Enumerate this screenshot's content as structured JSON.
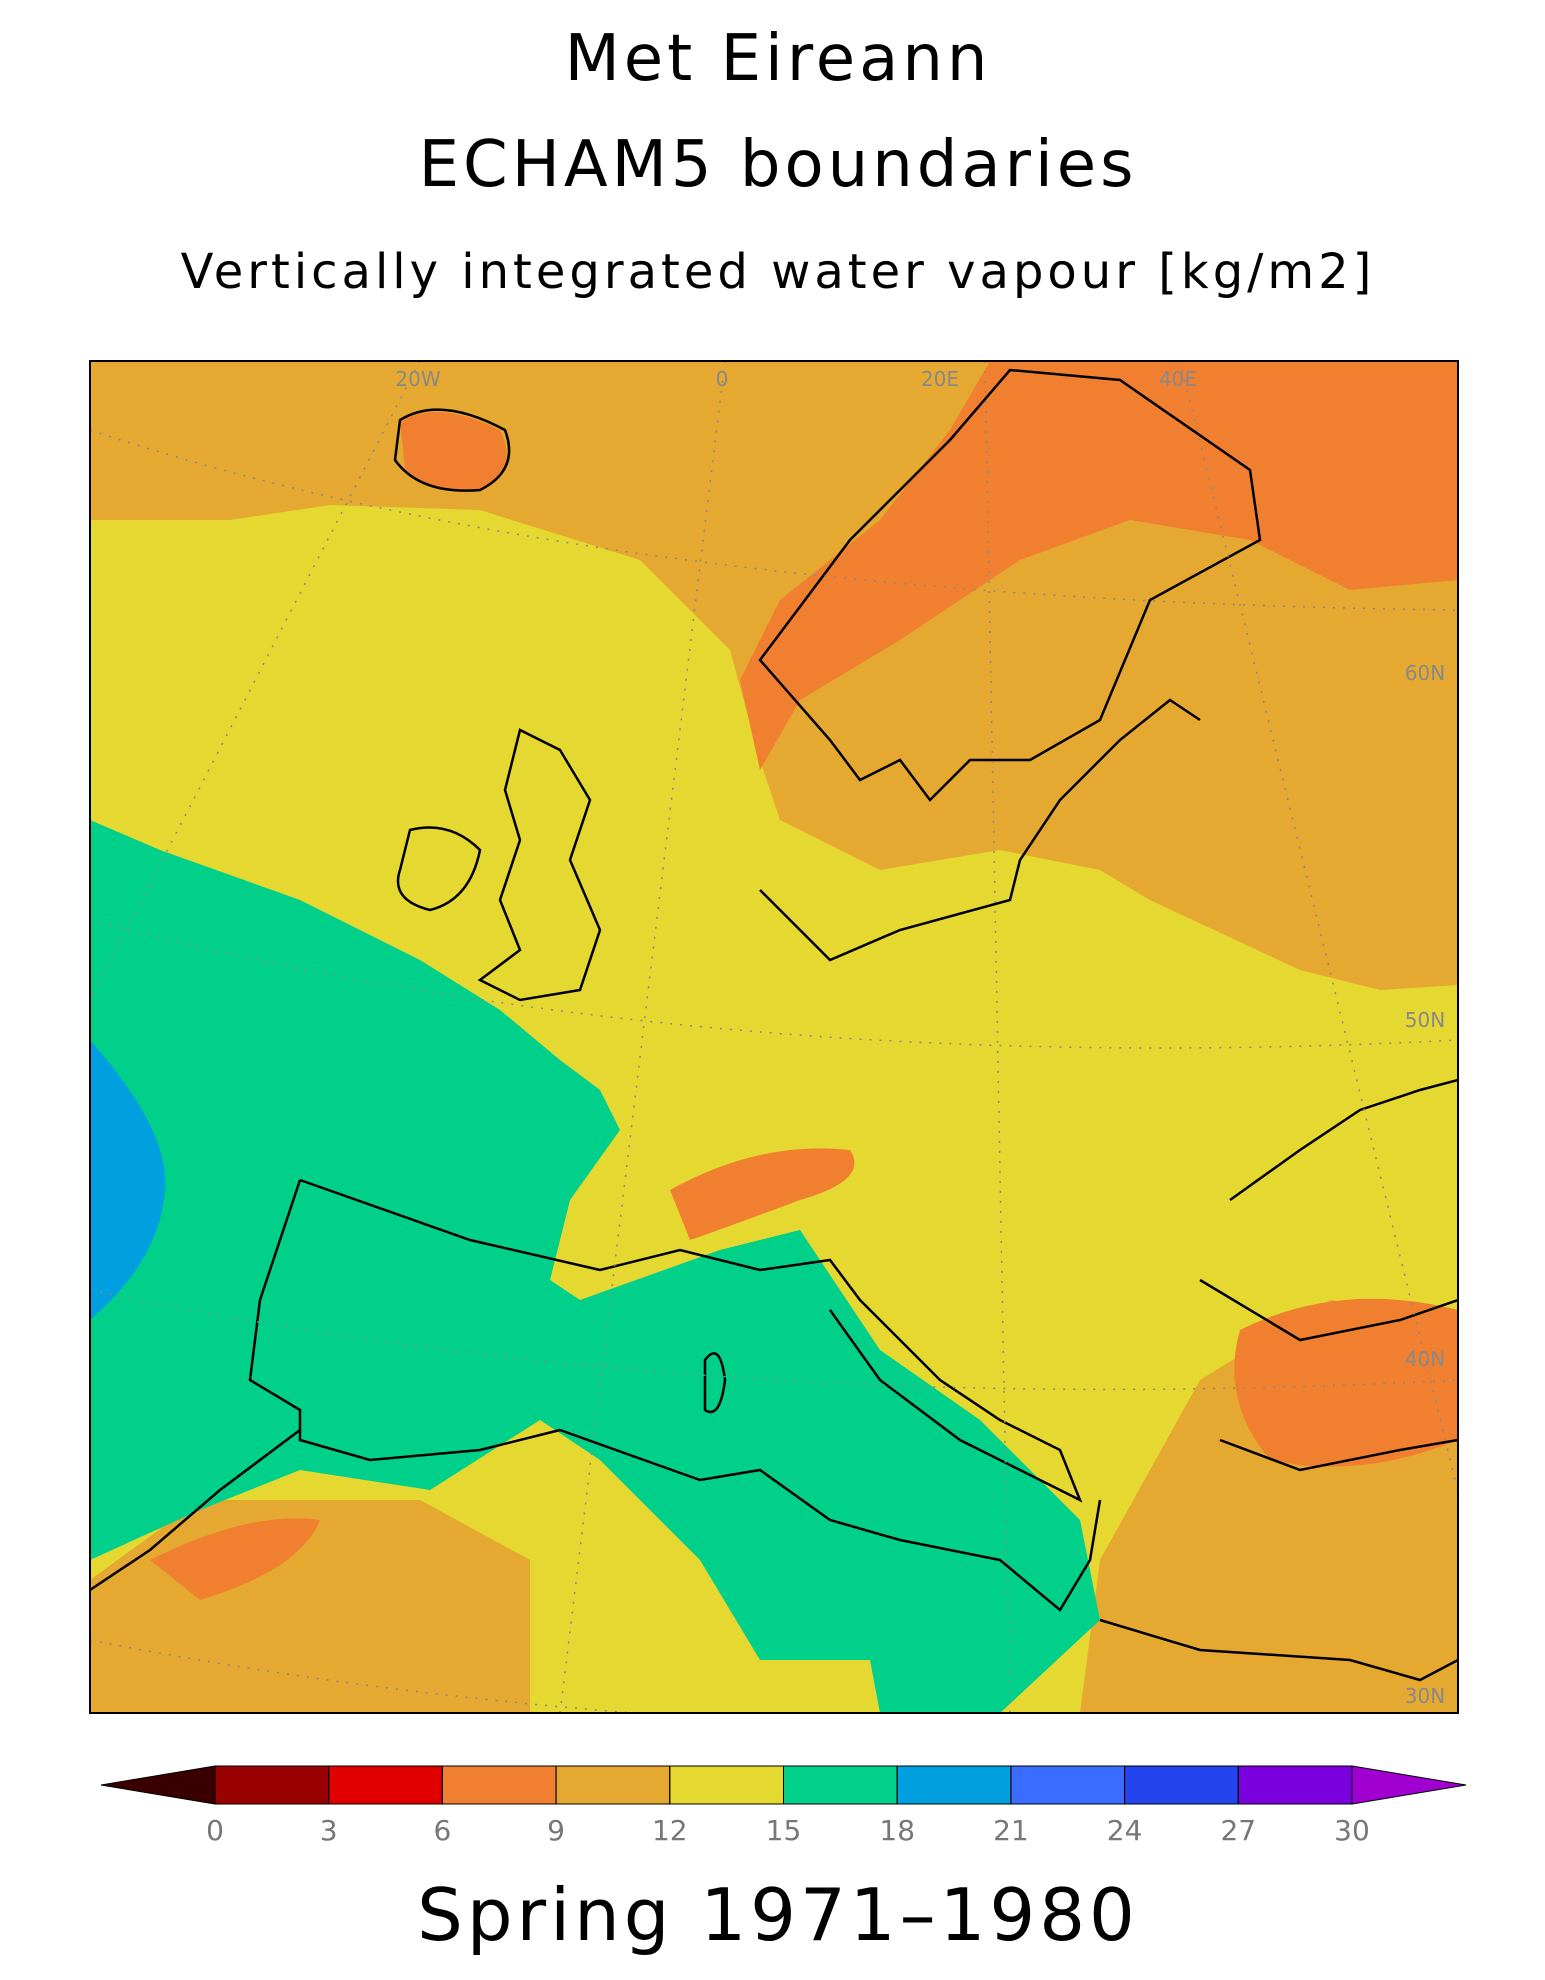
{
  "header": {
    "title": "Met Eireann",
    "subtitle": "ECHAM5 boundaries",
    "variable": "Vertically integrated water vapour [kg/m2]"
  },
  "map": {
    "labels": [
      "20W",
      "0",
      "20E",
      "40E",
      "60N",
      "50N",
      "40N",
      "30N"
    ]
  },
  "colorbar": {
    "ticks": [
      0,
      3,
      6,
      9,
      12,
      15,
      18,
      21,
      24,
      27,
      30
    ],
    "colors": [
      "#3a0000",
      "#990000",
      "#e00000",
      "#f08030",
      "#e5a830",
      "#e5d830",
      "#00d08a",
      "#00a0e0",
      "#3a6cff",
      "#2444f0",
      "#7a00e0",
      "#a000d0"
    ]
  },
  "caption": "Spring 1971–1980"
}
